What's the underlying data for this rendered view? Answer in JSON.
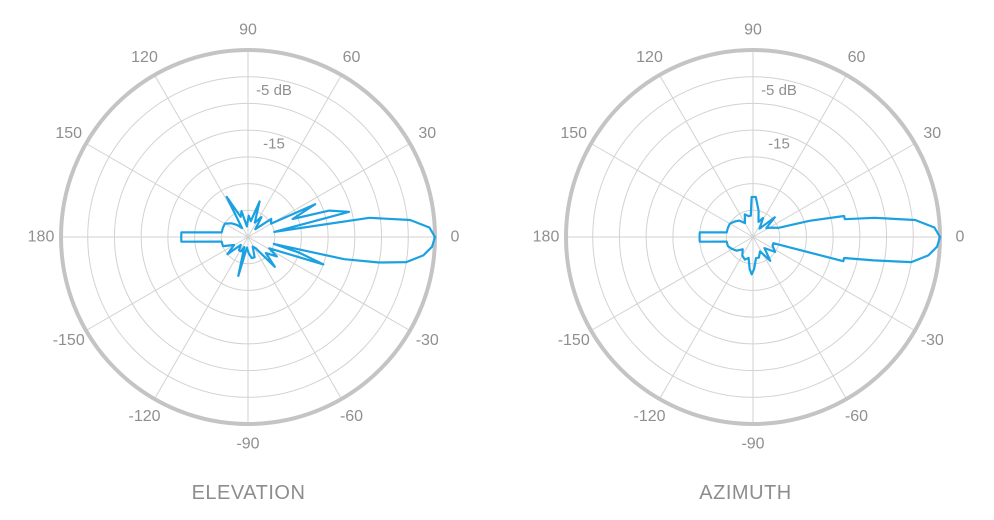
{
  "chart_data": [
    {
      "type": "polar",
      "title": "ELEVATION",
      "angle_labels": [
        "90",
        "60",
        "30",
        "0",
        "-30",
        "-60",
        "-90",
        "-120",
        "-150",
        "180",
        "150",
        "120"
      ],
      "radial_labels": [
        "-5 dB",
        "-15"
      ],
      "radial_range_db": [
        -35,
        0
      ],
      "grid": true,
      "series_color": "#1ba1e2",
      "series": [
        {
          "angles_deg": [
            0,
            3,
            6,
            9,
            11,
            14,
            18,
            22,
            26,
            30,
            38,
            47,
            56,
            65,
            72,
            80,
            88,
            96,
            104,
            110,
            118,
            124,
            132,
            140,
            150,
            160,
            170,
            176,
            180,
            184,
            190,
            200,
            210,
            220,
            228,
            236,
            244,
            250,
            256,
            264,
            272,
            280,
            288,
            296,
            304,
            312,
            318,
            326,
            332,
            340,
            343,
            345,
            347,
            349,
            351,
            354,
            357
          ],
          "gain_db": [
            0,
            -1,
            -4.5,
            -12,
            -30,
            -15.5,
            -19,
            -26,
            -21,
            -30,
            -29.5,
            -33,
            -30.5,
            -32,
            -28,
            -32,
            -31,
            -33,
            -30,
            -31,
            -26.5,
            -33,
            -32,
            -31,
            -30,
            -30,
            -30,
            -22.5,
            -22.5,
            -22.5,
            -30,
            -30,
            -32,
            -30,
            -33,
            -32,
            -32,
            -33,
            -27.5,
            -33,
            -32,
            -31,
            -31,
            -33,
            -32.5,
            -27.5,
            -30.5,
            -28.5,
            -30.5,
            -20,
            -25,
            -30,
            -16.5,
            -10,
            -5,
            -2,
            -0.5
          ]
        }
      ]
    },
    {
      "type": "polar",
      "title": "AZIMUTH",
      "angle_labels": [
        "90",
        "60",
        "30",
        "0",
        "-30",
        "-60",
        "-90",
        "-120",
        "-150",
        "180",
        "150",
        "120"
      ],
      "radial_labels": [
        "-5 dB",
        "-15"
      ],
      "radial_range_db": [
        -35,
        0
      ],
      "grid": true,
      "series_color": "#1ba1e2",
      "series": [
        {
          "angles_deg": [
            0,
            3,
            6,
            9,
            11,
            13,
            16,
            20,
            26,
            34,
            42,
            52,
            62,
            70,
            78,
            86,
            92,
            96,
            102,
            110,
            120,
            130,
            140,
            150,
            160,
            170,
            175,
            178,
            180,
            182,
            185,
            190,
            200,
            210,
            220,
            230,
            240,
            250,
            258,
            264,
            268,
            272,
            278,
            286,
            296,
            306,
            316,
            326,
            336,
            343,
            345,
            347,
            349,
            351,
            354,
            357
          ],
          "gain_db": [
            0,
            -1,
            -4.5,
            -12,
            -17.5,
            -17.5,
            -24,
            -30,
            -31,
            -32,
            -29.5,
            -33,
            -31,
            -32,
            -30,
            -27.5,
            -27.5,
            -31,
            -31,
            -30.5,
            -32,
            -31,
            -30.5,
            -30,
            -30,
            -30,
            -25,
            -25,
            -25,
            -25,
            -25,
            -30,
            -30,
            -30.5,
            -31,
            -32,
            -31,
            -30.5,
            -31,
            -29,
            -28,
            -29,
            -31,
            -31,
            -32,
            -29.5,
            -32,
            -30,
            -31,
            -31,
            -17.5,
            -17.5,
            -12,
            -5,
            -2,
            -0.5
          ]
        }
      ]
    }
  ]
}
